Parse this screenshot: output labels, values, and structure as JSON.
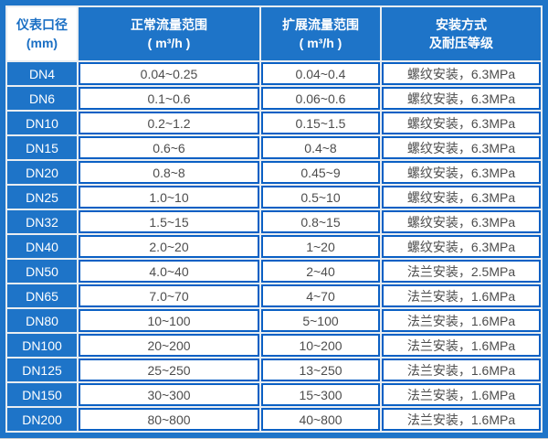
{
  "table": {
    "header": {
      "col1": {
        "line1": "仪表口径",
        "line2": "(mm)"
      },
      "col2": {
        "line1": "正常流量范围",
        "line2": "( m³/h )"
      },
      "col3": {
        "line1": "扩展流量范围",
        "line2": "( m³/h )"
      },
      "col4": {
        "line1": "安装方式",
        "line2": "及耐压等级"
      }
    }
  },
  "colors": {
    "blue_fill": "#1e74c8",
    "blue_border": "#0b60c4",
    "header_text": "#ffffff",
    "corner_cell_text": "#1a6fc4",
    "data_text": "#4d4d4d",
    "gap_light": "#e9edf1",
    "page_background": "#e0e0e0"
  },
  "chart_data": {
    "type": "table",
    "columns": [
      "仪表口径 (mm)",
      "正常流量范围 ( m³/h )",
      "扩展流量范围 ( m³/h )",
      "安装方式及耐压等级"
    ],
    "rows": [
      [
        "DN4",
        "0.04~0.25",
        "0.04~0.4",
        "螺纹安装，6.3MPa"
      ],
      [
        "DN6",
        "0.1~0.6",
        "0.06~0.6",
        "螺纹安装，6.3MPa"
      ],
      [
        "DN10",
        "0.2~1.2",
        "0.15~1.5",
        "螺纹安装，6.3MPa"
      ],
      [
        "DN15",
        "0.6~6",
        "0.4~8",
        "螺纹安装，6.3MPa"
      ],
      [
        "DN20",
        "0.8~8",
        "0.45~9",
        "螺纹安装，6.3MPa"
      ],
      [
        "DN25",
        "1.0~10",
        "0.5~10",
        "螺纹安装，6.3MPa"
      ],
      [
        "DN32",
        "1.5~15",
        "0.8~15",
        "螺纹安装，6.3MPa"
      ],
      [
        "DN40",
        "2.0~20",
        "1~20",
        "螺纹安装，6.3MPa"
      ],
      [
        "DN50",
        "4.0~40",
        "2~40",
        "法兰安装，2.5MPa"
      ],
      [
        "DN65",
        "7.0~70",
        "4~70",
        "法兰安装，1.6MPa"
      ],
      [
        "DN80",
        "10~100",
        "5~100",
        "法兰安装，1.6MPa"
      ],
      [
        "DN100",
        "20~200",
        "10~200",
        "法兰安装，1.6MPa"
      ],
      [
        "DN125",
        "25~250",
        "13~250",
        "法兰安装，1.6MPa"
      ],
      [
        "DN150",
        "30~300",
        "15~300",
        "法兰安装，1.6MPa"
      ],
      [
        "DN200",
        "80~800",
        "40~800",
        "法兰安装，1.6MPa"
      ]
    ]
  }
}
